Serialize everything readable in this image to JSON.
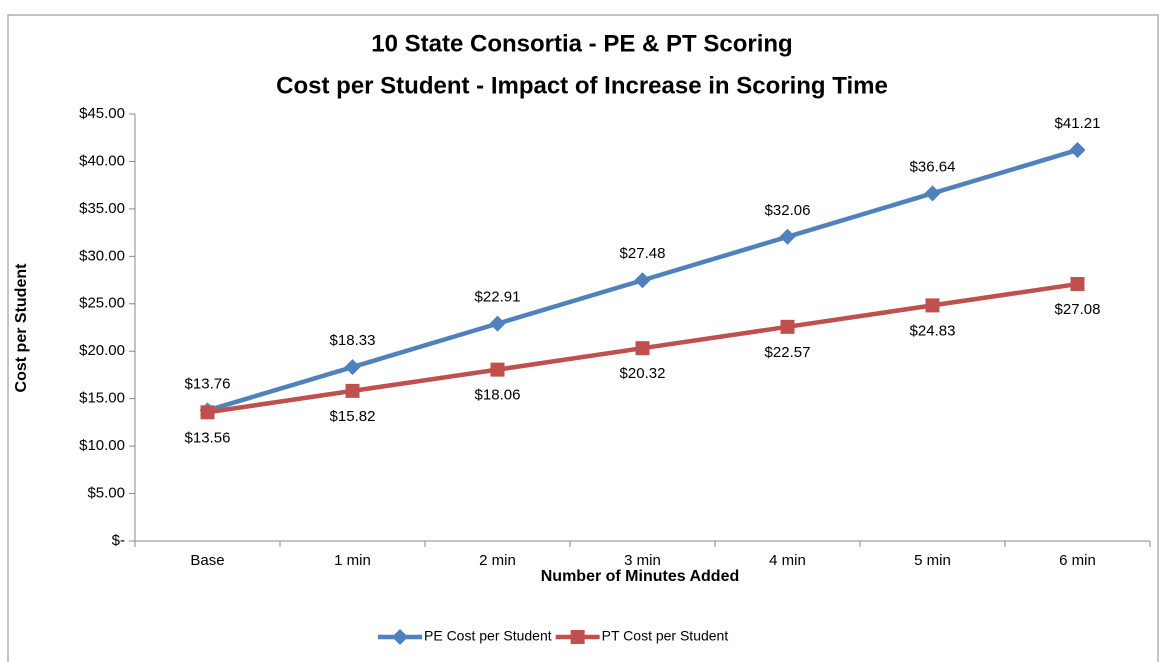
{
  "chart_data": {
    "type": "line",
    "title": [
      "10 State Consortia - PE & PT Scoring",
      "Cost per Student - Impact of Increase in Scoring Time"
    ],
    "x_label": "Number of Minutes Added",
    "y_label": "Cost per Student",
    "categories": [
      "Base",
      "1 min",
      "2 min",
      "3 min",
      "4 min",
      "5 min",
      "6 min"
    ],
    "series": [
      {
        "name": "PE Cost per Student",
        "color": "#4f81bd",
        "marker": "diamond",
        "values": [
          13.76,
          18.33,
          22.91,
          27.48,
          32.06,
          36.64,
          41.21
        ],
        "value_labels": [
          "$13.76",
          "$18.33",
          "$22.91",
          "$27.48",
          "$32.06",
          "$36.64",
          "$41.21"
        ]
      },
      {
        "name": "PT Cost per Student",
        "color": "#c0504d",
        "marker": "square",
        "values": [
          13.56,
          15.82,
          18.06,
          20.32,
          22.57,
          24.83,
          27.08
        ],
        "value_labels": [
          "$13.56",
          "$15.82",
          "$18.06",
          "$20.32",
          "$22.57",
          "$24.83",
          "$27.08"
        ]
      }
    ],
    "ylim": [
      0,
      45
    ],
    "yticks": [
      {
        "value": 0,
        "label": "$-"
      },
      {
        "value": 5,
        "label": "$5.00"
      },
      {
        "value": 10,
        "label": "$10.00"
      },
      {
        "value": 15,
        "label": "$15.00"
      },
      {
        "value": 20,
        "label": "$20.00"
      },
      {
        "value": 25,
        "label": "$25.00"
      },
      {
        "value": 30,
        "label": "$30.00"
      },
      {
        "value": 35,
        "label": "$35.00"
      },
      {
        "value": 40,
        "label": "$40.00"
      },
      {
        "value": 45,
        "label": "$45.00"
      }
    ],
    "grid": false,
    "legend": "bottom"
  }
}
